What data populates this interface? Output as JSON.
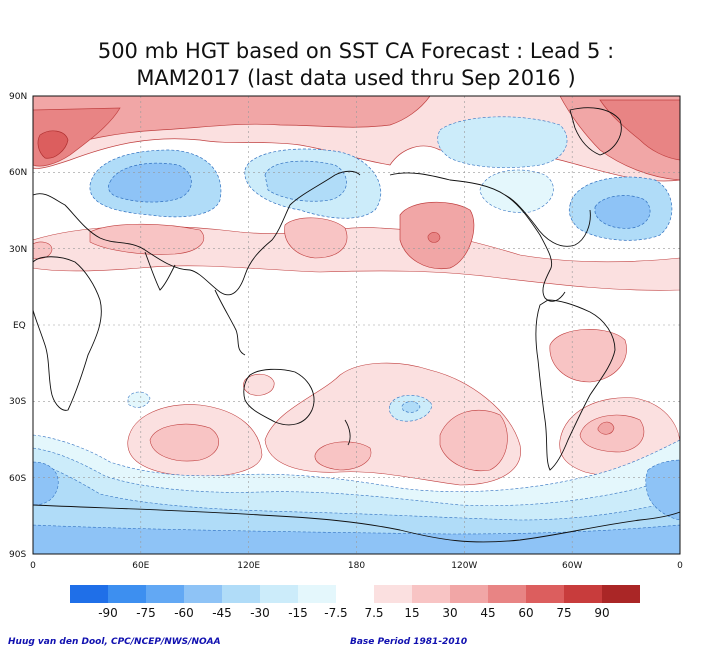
{
  "title": {
    "line1": "500 mb HGT based on SST CA Forecast : Lead 5 :",
    "line2": "MAM2017 (last data used thru Sep 2016 )"
  },
  "lat_ticks": [
    "90N",
    "60N",
    "30N",
    "EQ",
    "30S",
    "60S",
    "90S"
  ],
  "lon_ticks": [
    "0",
    "60E",
    "120E",
    "180",
    "120W",
    "60W",
    "0"
  ],
  "colorbar": {
    "labels": [
      "-90",
      "-75",
      "-60",
      "-45",
      "-30",
      "-15",
      "-7.5",
      "7.5",
      "15",
      "30",
      "45",
      "60",
      "75",
      "90"
    ],
    "colors": [
      "#1f6fe8",
      "#3d8ff0",
      "#62a8f4",
      "#8ec3f6",
      "#b0dcf8",
      "#ccecfa",
      "#e4f7fc",
      "#ffffff",
      "#fbe0e0",
      "#f8c4c4",
      "#f1a6a6",
      "#e88484",
      "#dc5e5e",
      "#c83c3c",
      "#aa2626"
    ]
  },
  "credits": {
    "left": "Huug van den Dool, CPC/NCEP/NWS/NOAA",
    "right": "Base Period 1981-2010"
  }
}
